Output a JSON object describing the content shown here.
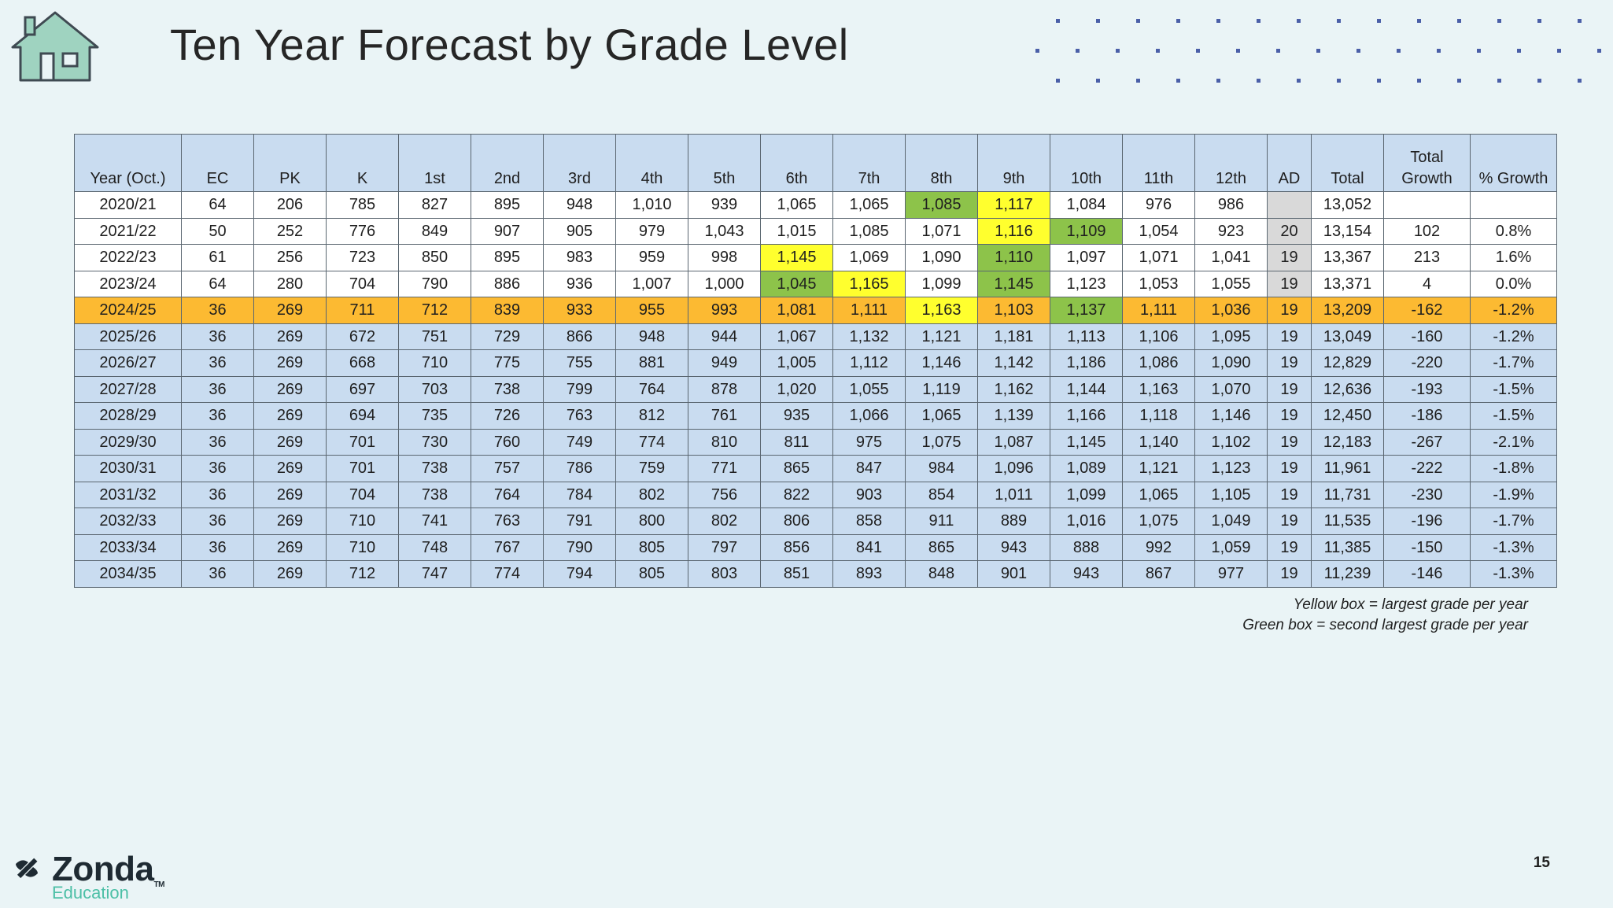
{
  "title": "Ten Year Forecast by Grade Level",
  "headers": [
    "Year (Oct.)",
    "EC",
    "PK",
    "K",
    "1st",
    "2nd",
    "3rd",
    "4th",
    "5th",
    "6th",
    "7th",
    "8th",
    "9th",
    "10th",
    "11th",
    "12th",
    "AD",
    "Total",
    "Total Growth",
    "% Growth"
  ],
  "header_total_growth_line1": "Total",
  "header_total_growth_line2": "Growth",
  "rows": [
    {
      "kind": "actual",
      "cells": [
        "2020/21",
        "64",
        "206",
        "785",
        "827",
        "895",
        "948",
        "1,010",
        "939",
        "1,065",
        "1,065",
        "1,085",
        "1,117",
        "1,084",
        "976",
        "986",
        "",
        "13,052",
        "",
        ""
      ],
      "yellow": [
        12
      ],
      "green": [
        11
      ]
    },
    {
      "kind": "actual",
      "cells": [
        "2021/22",
        "50",
        "252",
        "776",
        "849",
        "907",
        "905",
        "979",
        "1,043",
        "1,015",
        "1,085",
        "1,071",
        "1,116",
        "1,109",
        "1,054",
        "923",
        "20",
        "13,154",
        "102",
        "0.8%"
      ],
      "yellow": [
        12
      ],
      "green": [
        13
      ]
    },
    {
      "kind": "actual",
      "cells": [
        "2022/23",
        "61",
        "256",
        "723",
        "850",
        "895",
        "983",
        "959",
        "998",
        "1,145",
        "1,069",
        "1,090",
        "1,110",
        "1,097",
        "1,071",
        "1,041",
        "19",
        "13,367",
        "213",
        "1.6%"
      ],
      "yellow": [
        9
      ],
      "green": [
        12
      ]
    },
    {
      "kind": "actual",
      "cells": [
        "2023/24",
        "64",
        "280",
        "704",
        "790",
        "886",
        "936",
        "1,007",
        "1,000",
        "1,045",
        "1,165",
        "1,099",
        "1,145",
        "1,123",
        "1,053",
        "1,055",
        "19",
        "13,371",
        "4",
        "0.0%"
      ],
      "yellow": [
        10
      ],
      "green": [
        9,
        12
      ]
    },
    {
      "kind": "current",
      "cells": [
        "2024/25",
        "36",
        "269",
        "711",
        "712",
        "839",
        "933",
        "955",
        "993",
        "1,081",
        "1,111",
        "1,163",
        "1,103",
        "1,137",
        "1,111",
        "1,036",
        "19",
        "13,209",
        "-162",
        "-1.2%"
      ],
      "yellow": [
        11
      ],
      "green": [
        13
      ]
    },
    {
      "kind": "forecast",
      "cells": [
        "2025/26",
        "36",
        "269",
        "672",
        "751",
        "729",
        "866",
        "948",
        "944",
        "1,067",
        "1,132",
        "1,121",
        "1,181",
        "1,113",
        "1,106",
        "1,095",
        "19",
        "13,049",
        "-160",
        "-1.2%"
      ],
      "yellow": [],
      "green": []
    },
    {
      "kind": "forecast",
      "cells": [
        "2026/27",
        "36",
        "269",
        "668",
        "710",
        "775",
        "755",
        "881",
        "949",
        "1,005",
        "1,112",
        "1,146",
        "1,142",
        "1,186",
        "1,086",
        "1,090",
        "19",
        "12,829",
        "-220",
        "-1.7%"
      ],
      "yellow": [],
      "green": []
    },
    {
      "kind": "forecast",
      "cells": [
        "2027/28",
        "36",
        "269",
        "697",
        "703",
        "738",
        "799",
        "764",
        "878",
        "1,020",
        "1,055",
        "1,119",
        "1,162",
        "1,144",
        "1,163",
        "1,070",
        "19",
        "12,636",
        "-193",
        "-1.5%"
      ],
      "yellow": [],
      "green": []
    },
    {
      "kind": "forecast",
      "cells": [
        "2028/29",
        "36",
        "269",
        "694",
        "735",
        "726",
        "763",
        "812",
        "761",
        "935",
        "1,066",
        "1,065",
        "1,139",
        "1,166",
        "1,118",
        "1,146",
        "19",
        "12,450",
        "-186",
        "-1.5%"
      ],
      "yellow": [],
      "green": []
    },
    {
      "kind": "forecast",
      "cells": [
        "2029/30",
        "36",
        "269",
        "701",
        "730",
        "760",
        "749",
        "774",
        "810",
        "811",
        "975",
        "1,075",
        "1,087",
        "1,145",
        "1,140",
        "1,102",
        "19",
        "12,183",
        "-267",
        "-2.1%"
      ],
      "yellow": [],
      "green": []
    },
    {
      "kind": "forecast",
      "cells": [
        "2030/31",
        "36",
        "269",
        "701",
        "738",
        "757",
        "786",
        "759",
        "771",
        "865",
        "847",
        "984",
        "1,096",
        "1,089",
        "1,121",
        "1,123",
        "19",
        "11,961",
        "-222",
        "-1.8%"
      ],
      "yellow": [],
      "green": []
    },
    {
      "kind": "forecast",
      "cells": [
        "2031/32",
        "36",
        "269",
        "704",
        "738",
        "764",
        "784",
        "802",
        "756",
        "822",
        "903",
        "854",
        "1,011",
        "1,099",
        "1,065",
        "1,105",
        "19",
        "11,731",
        "-230",
        "-1.9%"
      ],
      "yellow": [],
      "green": []
    },
    {
      "kind": "forecast",
      "cells": [
        "2032/33",
        "36",
        "269",
        "710",
        "741",
        "763",
        "791",
        "800",
        "802",
        "806",
        "858",
        "911",
        "889",
        "1,016",
        "1,075",
        "1,049",
        "19",
        "11,535",
        "-196",
        "-1.7%"
      ],
      "yellow": [],
      "green": []
    },
    {
      "kind": "forecast",
      "cells": [
        "2033/34",
        "36",
        "269",
        "710",
        "748",
        "767",
        "790",
        "805",
        "797",
        "856",
        "841",
        "865",
        "943",
        "888",
        "992",
        "1,059",
        "19",
        "11,385",
        "-150",
        "-1.3%"
      ],
      "yellow": [],
      "green": []
    },
    {
      "kind": "forecast",
      "cells": [
        "2034/35",
        "36",
        "269",
        "712",
        "747",
        "774",
        "794",
        "805",
        "803",
        "851",
        "893",
        "848",
        "901",
        "943",
        "867",
        "977",
        "19",
        "11,239",
        "-146",
        "-1.3%"
      ],
      "yellow": [],
      "green": []
    }
  ],
  "legend": {
    "yellow": "Yellow box = largest grade per year",
    "green": "Green box = second largest grade per year"
  },
  "colors": {
    "yellow_highlight": "#ffff2e",
    "green_highlight": "#8dc34a",
    "current_year_row": "#fcba32",
    "forecast_row": "#c9dcf0",
    "header": "#c9dcf0"
  },
  "icons": {
    "home": "house-icon",
    "brand": "zonda-logo-mark"
  },
  "logo": {
    "name": "Zonda",
    "tm": "TM",
    "sub": "Education"
  },
  "page_number": "15"
}
